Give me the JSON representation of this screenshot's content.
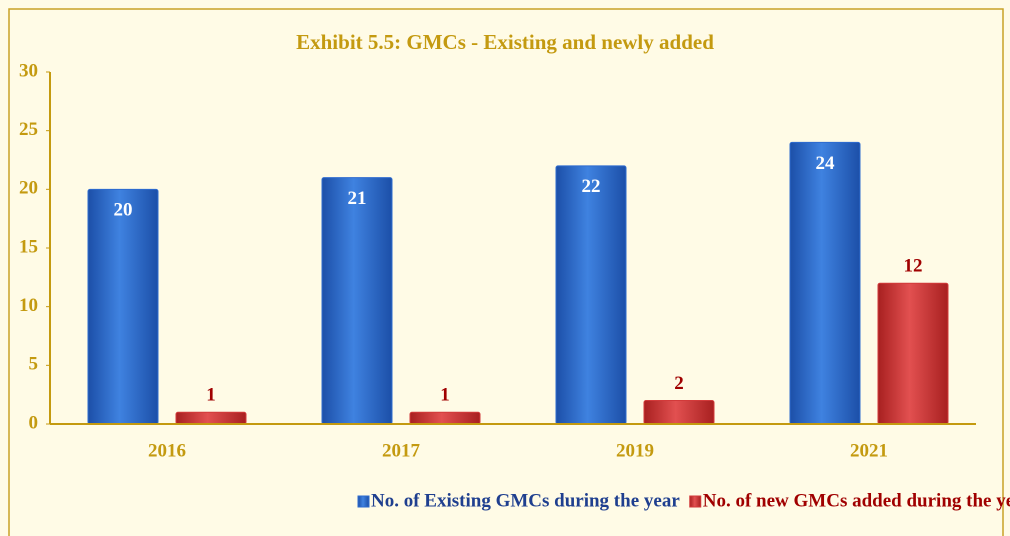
{
  "chart_data": {
    "type": "bar",
    "title": "Exhibit 5.5: GMCs - Existing and newly added",
    "categories": [
      "2016",
      "2017",
      "2019",
      "2021"
    ],
    "series": [
      {
        "name": "No. of Existing GMCs during the year",
        "color": "#2e6bcf",
        "values": [
          20,
          21,
          22,
          24
        ]
      },
      {
        "name": "No. of new GMCs added during the year",
        "color": "#d23a3a",
        "values": [
          1,
          1,
          2,
          12
        ]
      }
    ],
    "ylim": [
      0,
      30
    ],
    "yticks": [
      0,
      5,
      10,
      15,
      20,
      25,
      30
    ],
    "grid": false,
    "legend": "bottom"
  }
}
